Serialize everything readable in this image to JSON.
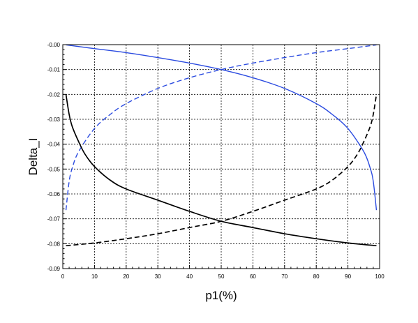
{
  "chart_data": {
    "type": "line",
    "xlabel": "p1(%)",
    "ylabel": "Delta_I",
    "xlim": [
      0,
      100
    ],
    "ylim": [
      -0.09,
      0.0
    ],
    "x_ticks": [
      0,
      10,
      20,
      30,
      40,
      50,
      60,
      70,
      80,
      90,
      100
    ],
    "x_tick_labels": [
      "0",
      "10",
      "20",
      "30",
      "40",
      "50",
      "60",
      "70",
      "80",
      "90",
      "100"
    ],
    "y_ticks": [
      0.0,
      -0.01,
      -0.02,
      -0.03,
      -0.04,
      -0.05,
      -0.06,
      -0.07,
      -0.08,
      -0.09
    ],
    "y_tick_labels": [
      "-0.00",
      "-0.01",
      "-0.02",
      "-0.03",
      "-0.04",
      "-0.05",
      "-0.06",
      "-0.07",
      "-0.08",
      "-0.09"
    ],
    "grid": true,
    "series": [
      {
        "color": "#2b4be0",
        "dash": "solid",
        "points": [
          [
            1,
            -0.0001
          ],
          [
            10,
            -0.0016
          ],
          [
            20,
            -0.0032
          ],
          [
            30,
            -0.0052
          ],
          [
            40,
            -0.0074
          ],
          [
            50,
            -0.01
          ],
          [
            60,
            -0.0133
          ],
          [
            70,
            -0.0176
          ],
          [
            80,
            -0.0237
          ],
          [
            85,
            -0.028
          ],
          [
            90,
            -0.0337
          ],
          [
            95,
            -0.043
          ],
          [
            97,
            -0.0495
          ],
          [
            98,
            -0.055
          ],
          [
            99,
            -0.0665
          ]
        ]
      },
      {
        "color": "#2b4be0",
        "dash": "dashed",
        "points": [
          [
            1,
            -0.0665
          ],
          [
            2,
            -0.055
          ],
          [
            3,
            -0.0495
          ],
          [
            5,
            -0.043
          ],
          [
            10,
            -0.0337
          ],
          [
            15,
            -0.028
          ],
          [
            20,
            -0.0237
          ],
          [
            30,
            -0.0176
          ],
          [
            40,
            -0.0133
          ],
          [
            50,
            -0.01
          ],
          [
            60,
            -0.0074
          ],
          [
            70,
            -0.0052
          ],
          [
            80,
            -0.0032
          ],
          [
            90,
            -0.0016
          ],
          [
            99,
            -0.0001
          ]
        ]
      },
      {
        "color": "#000000",
        "dash": "solid",
        "points": [
          [
            1,
            -0.02
          ],
          [
            2,
            -0.028
          ],
          [
            3,
            -0.033
          ],
          [
            5,
            -0.039
          ],
          [
            7,
            -0.044
          ],
          [
            10,
            -0.049
          ],
          [
            15,
            -0.0545
          ],
          [
            20,
            -0.058
          ],
          [
            30,
            -0.0625
          ],
          [
            40,
            -0.067
          ],
          [
            50,
            -0.071
          ],
          [
            60,
            -0.0735
          ],
          [
            70,
            -0.076
          ],
          [
            80,
            -0.078
          ],
          [
            90,
            -0.0797
          ],
          [
            99,
            -0.0808
          ]
        ]
      },
      {
        "color": "#000000",
        "dash": "dashed",
        "points": [
          [
            1,
            -0.0808
          ],
          [
            10,
            -0.0797
          ],
          [
            20,
            -0.078
          ],
          [
            30,
            -0.076
          ],
          [
            40,
            -0.0735
          ],
          [
            50,
            -0.071
          ],
          [
            60,
            -0.067
          ],
          [
            70,
            -0.0625
          ],
          [
            80,
            -0.058
          ],
          [
            85,
            -0.0545
          ],
          [
            90,
            -0.049
          ],
          [
            93,
            -0.044
          ],
          [
            95,
            -0.039
          ],
          [
            97,
            -0.033
          ],
          [
            98,
            -0.028
          ],
          [
            99,
            -0.02
          ]
        ]
      }
    ]
  }
}
